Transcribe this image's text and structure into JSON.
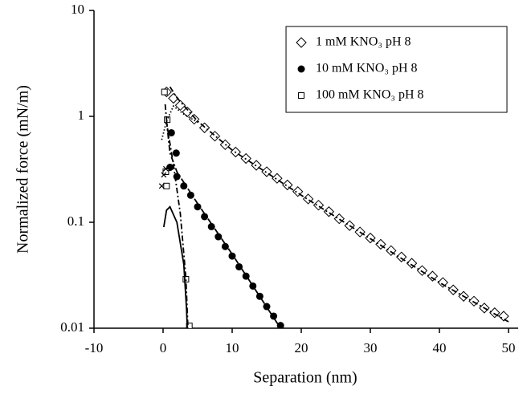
{
  "chart_data": {
    "type": "scatter",
    "xlabel": "Separation (nm)",
    "ylabel": "Normalized  force (mN/m)",
    "xlim": [
      -10,
      50
    ],
    "xticks": [
      -10,
      0,
      10,
      20,
      30,
      40,
      50
    ],
    "ylim": [
      0.01,
      10
    ],
    "yticks": [
      0.01,
      0.1,
      1,
      10
    ],
    "ylog": true,
    "legend": "upper right",
    "series": [
      {
        "name": "1 mM KNO₃ pH 8",
        "marker": "diamond",
        "color": "#000000",
        "x": [
          0.5,
          1.5,
          2.5,
          3.5,
          4.5,
          6,
          7.5,
          9,
          10.5,
          12,
          13.5,
          15,
          16.5,
          18,
          19.5,
          21,
          22.5,
          24,
          25.5,
          27,
          28.5,
          30,
          31.5,
          33,
          34.5,
          36,
          37.5,
          39,
          40.5,
          42,
          43.5,
          45,
          46.5,
          48,
          49.3
        ],
        "values": [
          1.7,
          1.48,
          1.27,
          1.1,
          0.94,
          0.78,
          0.65,
          0.54,
          0.46,
          0.4,
          0.345,
          0.3,
          0.26,
          0.225,
          0.195,
          0.166,
          0.145,
          0.126,
          0.108,
          0.093,
          0.081,
          0.071,
          0.062,
          0.054,
          0.047,
          0.041,
          0.035,
          0.031,
          0.027,
          0.023,
          0.02,
          0.018,
          0.0155,
          0.014,
          0.013
        ]
      },
      {
        "name": "10 mM KNO₃ pH 8",
        "marker": "circle",
        "color": "#000000",
        "x": [
          1.2,
          1.9,
          1,
          2,
          3,
          4,
          5,
          6,
          7,
          8,
          9,
          10,
          11,
          12,
          13,
          14,
          15,
          16,
          17
        ],
        "values": [
          0.7,
          0.45,
          0.33,
          0.27,
          0.22,
          0.18,
          0.14,
          0.113,
          0.091,
          0.073,
          0.059,
          0.048,
          0.038,
          0.031,
          0.025,
          0.02,
          0.016,
          0.013,
          0.0106
        ]
      },
      {
        "name": "100 mM KNO₃ pH 8",
        "marker": "square",
        "color": "#000000",
        "x": [
          0.2,
          0.6,
          0.4,
          0.5,
          3.3,
          3.8
        ],
        "values": [
          1.7,
          0.93,
          0.3,
          0.22,
          0.029,
          0.0105
        ]
      },
      {
        "marker": "cross",
        "color": "#000000",
        "x": [
          -0.2,
          0.1,
          0.4
        ],
        "values": [
          0.22,
          0.28,
          0.32
        ]
      },
      {
        "line_style": "dash-dot",
        "color": "#000000",
        "x": [
          1,
          2,
          5,
          10,
          20,
          30,
          40,
          50
        ],
        "values": [
          1.9,
          1.5,
          0.9,
          0.48,
          0.18,
          0.07,
          0.027,
          0.0115
        ]
      },
      {
        "line_style": "dotted",
        "color": "#000000",
        "x": [
          -0.2,
          0.5,
          1.5,
          3,
          5
        ],
        "values": [
          0.6,
          0.9,
          1.25,
          1.05,
          0.88
        ]
      },
      {
        "line_style": "dash-dot",
        "color": "#000000",
        "x": [
          0.5,
          1,
          2,
          5,
          10,
          17
        ],
        "values": [
          0.9,
          0.45,
          0.3,
          0.15,
          0.05,
          0.01
        ]
      },
      {
        "line_style": "dash-dot",
        "color": "#000000",
        "x": [
          0.3,
          0.6,
          1.5,
          2.5,
          3.3,
          3.6
        ],
        "values": [
          1.3,
          0.8,
          0.35,
          0.12,
          0.03,
          0.01
        ]
      },
      {
        "line_style": "solid",
        "color": "#000000",
        "x": [
          0.1,
          0.5,
          1,
          2,
          3,
          3.4,
          3.5
        ],
        "values": [
          0.09,
          0.13,
          0.14,
          0.1,
          0.04,
          0.015,
          0.01
        ]
      }
    ]
  }
}
